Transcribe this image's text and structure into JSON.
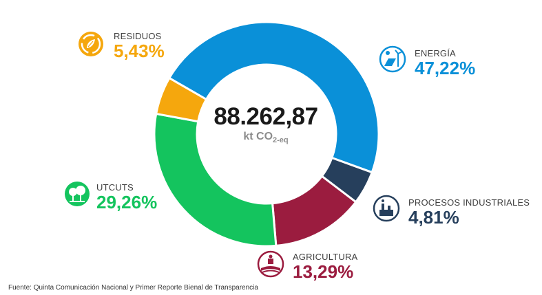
{
  "chart_data": {
    "type": "pie",
    "donut": true,
    "center_value": "88.262,87",
    "center_unit_main": "kt CO",
    "center_unit_sub": "2-eq",
    "slices": [
      {
        "name": "ENERGÍA",
        "value": 47.22,
        "label": "47,22%",
        "color": "#0a90d8",
        "icon": "solar-wind-icon"
      },
      {
        "name": "PROCESOS INDUSTRIALES",
        "value": 4.81,
        "label": "4,81%",
        "color": "#263f5c",
        "icon": "factory-icon"
      },
      {
        "name": "AGRICULTURA",
        "value": 13.29,
        "label": "13,29%",
        "color": "#9b1c3f",
        "icon": "farm-icon"
      },
      {
        "name": "UTCUTS",
        "value": 29.26,
        "label": "29,26%",
        "color": "#14c45e",
        "icon": "trees-icon"
      },
      {
        "name": "RESIDUOS",
        "value": 5.43,
        "label": "5,43%",
        "color": "#f5a70d",
        "icon": "recycle-icon"
      }
    ]
  },
  "source": "Fuente: Quinta Comunicación Nacional y Primer Reporte Bienal de Transparencia"
}
